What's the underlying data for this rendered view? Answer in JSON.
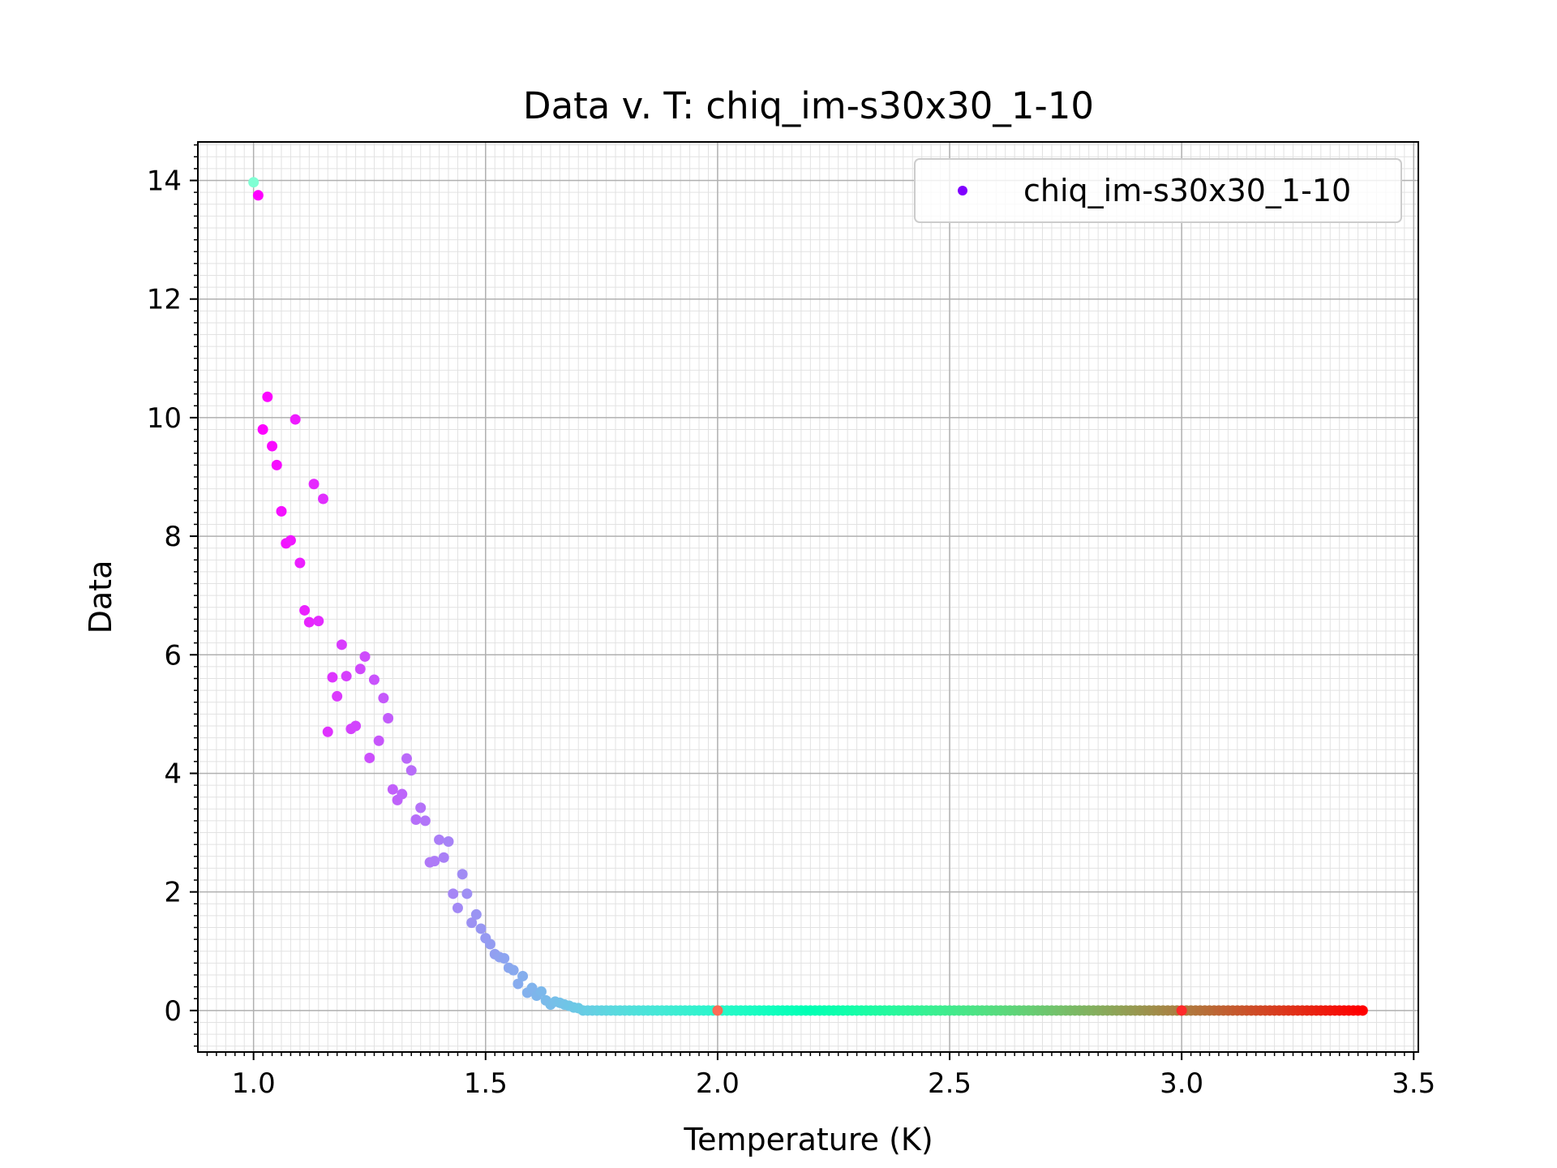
{
  "chart_data": {
    "type": "scatter",
    "title": "Data v. T: chiq_im-s30x30_1-10",
    "xlabel": "Temperature (K)",
    "ylabel": "Data",
    "xlim": [
      0.88,
      3.51
    ],
    "ylim": [
      -0.7,
      14.65
    ],
    "xticks": [
      {
        "value": 1.0,
        "label": "1.0"
      },
      {
        "value": 1.5,
        "label": "1.5"
      },
      {
        "value": 2.0,
        "label": "2.0"
      },
      {
        "value": 2.5,
        "label": "2.5"
      },
      {
        "value": 3.0,
        "label": "3.0"
      },
      {
        "value": 3.5,
        "label": "3.5"
      }
    ],
    "yticks": [
      {
        "value": 0,
        "label": "0"
      },
      {
        "value": 2,
        "label": "2"
      },
      {
        "value": 4,
        "label": "4"
      },
      {
        "value": 6,
        "label": "6"
      },
      {
        "value": 8,
        "label": "8"
      },
      {
        "value": 10,
        "label": "10"
      },
      {
        "value": 12,
        "label": "12"
      },
      {
        "value": 14,
        "label": "14"
      }
    ],
    "grid": "major and minor",
    "legend": {
      "position": "top-right",
      "entries": [
        {
          "name": "chiq_im-s30x30_1-10",
          "color": "#8000ff"
        }
      ]
    },
    "colormap": "rainbow",
    "series": [
      {
        "name": "chiq_im-s30x30_1-10",
        "points": [
          {
            "x": 1.01,
            "y": 13.75
          },
          {
            "x": 1.02,
            "y": 9.8
          },
          {
            "x": 1.03,
            "y": 10.35
          },
          {
            "x": 1.04,
            "y": 9.52
          },
          {
            "x": 1.05,
            "y": 9.2
          },
          {
            "x": 1.06,
            "y": 8.42
          },
          {
            "x": 1.07,
            "y": 7.88
          },
          {
            "x": 1.08,
            "y": 7.93
          },
          {
            "x": 1.09,
            "y": 9.97
          },
          {
            "x": 1.1,
            "y": 7.55
          },
          {
            "x": 1.11,
            "y": 6.75
          },
          {
            "x": 1.12,
            "y": 6.55
          },
          {
            "x": 1.13,
            "y": 8.88
          },
          {
            "x": 1.14,
            "y": 6.57
          },
          {
            "x": 1.15,
            "y": 8.63
          },
          {
            "x": 1.16,
            "y": 4.7
          },
          {
            "x": 1.17,
            "y": 5.62
          },
          {
            "x": 1.18,
            "y": 5.3
          },
          {
            "x": 1.19,
            "y": 6.17
          },
          {
            "x": 1.2,
            "y": 5.64
          },
          {
            "x": 1.21,
            "y": 4.75
          },
          {
            "x": 1.22,
            "y": 4.8
          },
          {
            "x": 1.23,
            "y": 5.76
          },
          {
            "x": 1.24,
            "y": 5.97
          },
          {
            "x": 1.25,
            "y": 4.26
          },
          {
            "x": 1.26,
            "y": 5.58
          },
          {
            "x": 1.27,
            "y": 4.55
          },
          {
            "x": 1.28,
            "y": 5.27
          },
          {
            "x": 1.29,
            "y": 4.93
          },
          {
            "x": 1.3,
            "y": 3.73
          },
          {
            "x": 1.31,
            "y": 3.55
          },
          {
            "x": 1.32,
            "y": 3.65
          },
          {
            "x": 1.33,
            "y": 4.25
          },
          {
            "x": 1.34,
            "y": 4.05
          },
          {
            "x": 1.35,
            "y": 3.22
          },
          {
            "x": 1.36,
            "y": 3.42
          },
          {
            "x": 1.37,
            "y": 3.2
          },
          {
            "x": 1.38,
            "y": 2.5
          },
          {
            "x": 1.39,
            "y": 2.52
          },
          {
            "x": 1.4,
            "y": 2.88
          },
          {
            "x": 1.41,
            "y": 2.58
          },
          {
            "x": 1.42,
            "y": 2.85
          },
          {
            "x": 1.43,
            "y": 1.97
          },
          {
            "x": 1.44,
            "y": 1.73
          },
          {
            "x": 1.45,
            "y": 2.3
          },
          {
            "x": 1.46,
            "y": 1.97
          },
          {
            "x": 1.47,
            "y": 1.48
          },
          {
            "x": 1.48,
            "y": 1.62
          },
          {
            "x": 1.49,
            "y": 1.38
          },
          {
            "x": 1.5,
            "y": 1.22
          },
          {
            "x": 1.51,
            "y": 1.12
          },
          {
            "x": 1.52,
            "y": 0.95
          },
          {
            "x": 1.53,
            "y": 0.9
          },
          {
            "x": 1.54,
            "y": 0.88
          },
          {
            "x": 1.55,
            "y": 0.72
          },
          {
            "x": 1.56,
            "y": 0.68
          },
          {
            "x": 1.57,
            "y": 0.45
          },
          {
            "x": 1.58,
            "y": 0.58
          },
          {
            "x": 1.59,
            "y": 0.3
          },
          {
            "x": 1.6,
            "y": 0.38
          },
          {
            "x": 1.61,
            "y": 0.25
          },
          {
            "x": 1.62,
            "y": 0.32
          },
          {
            "x": 1.63,
            "y": 0.17
          },
          {
            "x": 1.64,
            "y": 0.1
          },
          {
            "x": 1.65,
            "y": 0.15
          },
          {
            "x": 1.66,
            "y": 0.13
          },
          {
            "x": 1.67,
            "y": 0.1
          },
          {
            "x": 1.68,
            "y": 0.08
          },
          {
            "x": 1.69,
            "y": 0.05
          },
          {
            "x": 1.7,
            "y": 0.04
          }
        ],
        "tail": {
          "x_start": 1.71,
          "x_end": 3.39,
          "step": 0.01,
          "y": 0.0
        },
        "outliers": [
          {
            "x": 1.0,
            "y": 13.97,
            "color": "#80ffd4"
          },
          {
            "x": 2.0,
            "y": 0.0,
            "color": "#ff6b57"
          },
          {
            "x": 3.0,
            "y": 0.0,
            "color": "#ff2a2a"
          }
        ]
      }
    ]
  }
}
